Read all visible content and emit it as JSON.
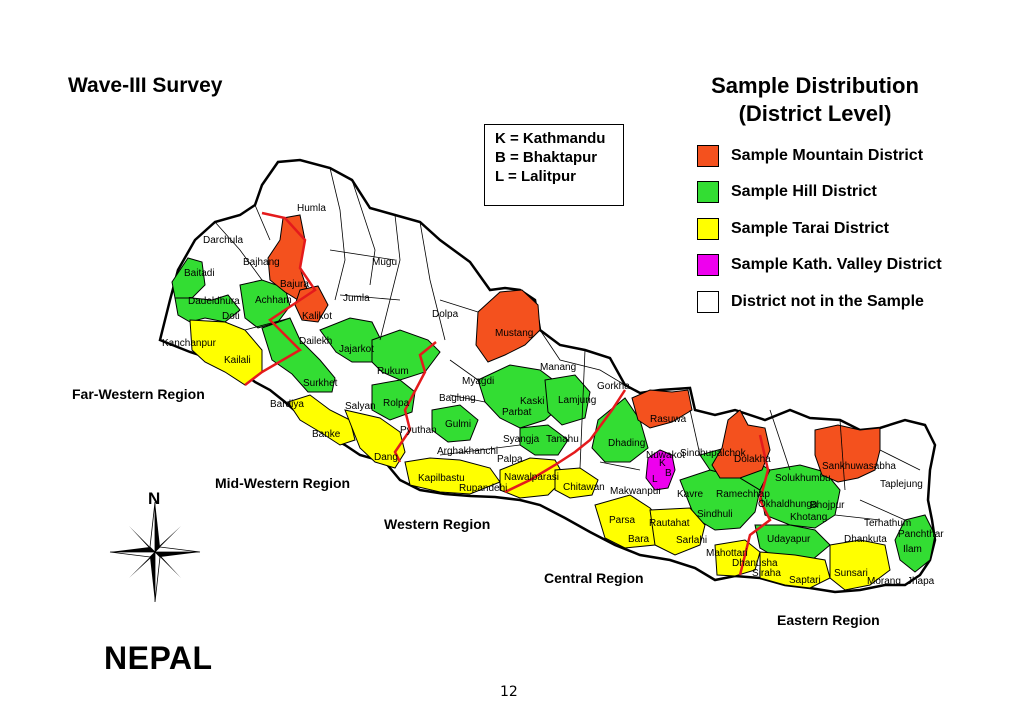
{
  "title": "Wave-III Survey",
  "legend": {
    "title_line1": "Sample Distribution",
    "title_line2": "(District Level)",
    "items": [
      {
        "label": "Sample Mountain District",
        "color": "#f4511e"
      },
      {
        "label": "Sample Hill District",
        "color": "#33dd33"
      },
      {
        "label": "Sample Tarai District",
        "color": "#ffff00"
      },
      {
        "label": "Sample Kath. Valley District",
        "color": "#ee00ee"
      },
      {
        "label": "District not in the Sample",
        "color": "#ffffff"
      }
    ]
  },
  "abbreviations": [
    "K = Kathmandu",
    "B = Bhaktapur",
    "L = Lalitpur"
  ],
  "regions": {
    "far_western": "Far-Western Region",
    "mid_western": "Mid-Western Region",
    "western": "Western Region",
    "central": "Central Region",
    "eastern": "Eastern Region"
  },
  "compass_label": "N",
  "country": "NEPAL",
  "page_number": "12",
  "districts": [
    "Humla",
    "Darchula",
    "Baitadi",
    "Bajhang",
    "Bajura",
    "Mugu",
    "Jumla",
    "Kalikot",
    "Achham",
    "Dadeldhura",
    "Doti",
    "Kanchanpur",
    "Kailali",
    "Dailekh",
    "Jajarkot",
    "Dolpa",
    "Mustang",
    "Manang",
    "Gorkha",
    "Myagdi",
    "Baglung",
    "Kaski",
    "Lamjung",
    "Parbat",
    "Rukum",
    "Rolpa",
    "Surkhet",
    "Salyan",
    "Bardiya",
    "Banke",
    "Dang",
    "Pyuthan",
    "Gulmi",
    "Arghakhanchi",
    "Syangja",
    "Tanahu",
    "Palpa",
    "Kapilbastu",
    "Rupandehi",
    "Nawalparasi",
    "Chitawan",
    "Makwanpur",
    "Dhading",
    "Rasuwa",
    "Nuwakot",
    "Sindhupalchok",
    "Dolakha",
    "Kavre",
    "Ramechhap",
    "Sindhuli",
    "Parsa",
    "Bara",
    "Rautahat",
    "Sarlahi",
    "Mahottari",
    "Dhanusha",
    "Siraha",
    "Saptari",
    "Udayapur",
    "Okhaldhunga",
    "Khotang",
    "Bhojpur",
    "Solukhumbu",
    "Sankhuwasabha",
    "Taplejung",
    "Terhathum",
    "Panchthar",
    "Ilam",
    "Dhankuta",
    "Sunsari",
    "Morang",
    "Jhapa",
    "K",
    "B",
    "L"
  ]
}
